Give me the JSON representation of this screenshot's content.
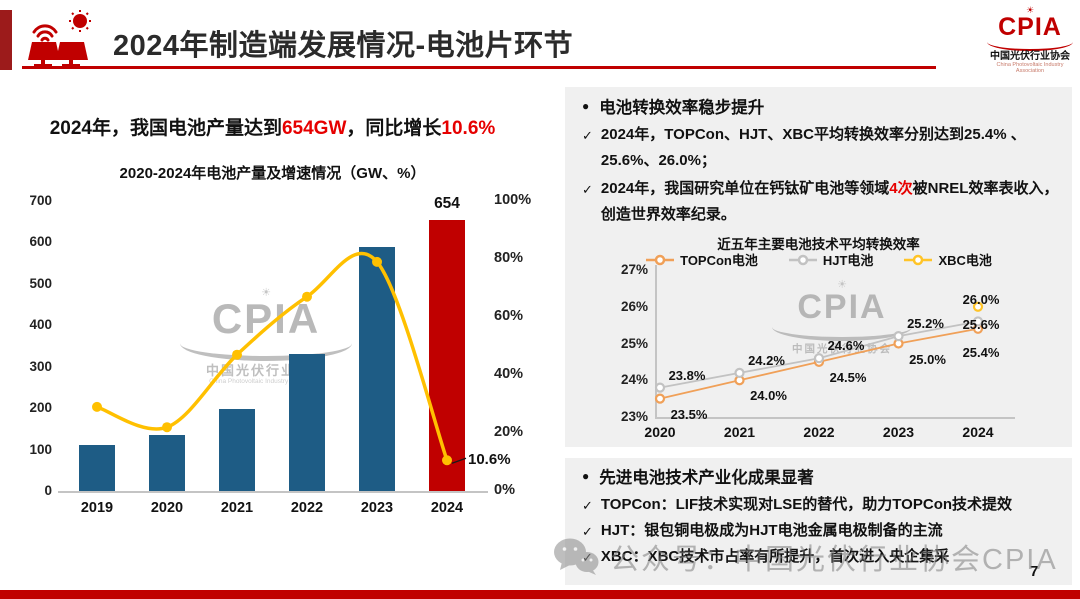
{
  "header": {
    "title": "2024年制造端发展情况-电池片环节",
    "logo": {
      "name": "CPIA",
      "cn": "中国光伏行业协会",
      "en": "China Photovoltaic Industry Association"
    }
  },
  "icons": {
    "bullet": "●",
    "check": "✓",
    "sun": "☀"
  },
  "colors": {
    "accent_red": "#C00000",
    "text_red": "#E60000",
    "bar_blue": "#1E5C85",
    "line_yellow": "#FFC000",
    "panel_gray": "#F0F0F0"
  },
  "left": {
    "headline_parts": [
      {
        "text": "2024年，我国电池产量达到",
        "red": false
      },
      {
        "text": "654GW",
        "red": true
      },
      {
        "text": "，同比增长",
        "red": false
      },
      {
        "text": "10.6%",
        "red": true
      }
    ]
  },
  "right": {
    "section1": {
      "heading": "电池转换效率稳步提升",
      "items": [
        [
          {
            "text": "2024年，TOPCon、HJT、XBC平均转换效率分别达到25.4% 、25.6%、26.0%；"
          }
        ],
        [
          {
            "text": "2024年，我国研究单位在钙钛矿电池等领域"
          },
          {
            "text": "4次",
            "red": true
          },
          {
            "text": "被NREL效率表收入，创造世界效率纪录。"
          }
        ]
      ]
    },
    "section2": {
      "heading": "先进电池技术产业化成果显著",
      "items": [
        [
          {
            "text": "TOPCon：LIF技术实现对LSE的替代，助力TOPCon技术提效"
          }
        ],
        [
          {
            "text": "HJT：银包铜电极成为HJT电池金属电极制备的主流"
          }
        ],
        [
          {
            "text": "XBC：XBC技术市占率有所提升，首次进入央企集采"
          }
        ]
      ]
    }
  },
  "watermark": {
    "cpia": "CPIA",
    "cn": "中国光伏行业协会",
    "en": "China Photovoltaic Industry Association",
    "wechat_text": "公众号：中国光伏行业协会CPIA"
  },
  "footer": {
    "page": "7"
  },
  "chart_data": [
    {
      "type": "bar+line",
      "title": "2020-2024年电池产量及增速情况（GW、%）",
      "categories": [
        "2019",
        "2020",
        "2021",
        "2022",
        "2023",
        "2024"
      ],
      "bar_series": {
        "name": "电池产量(GW)",
        "values": [
          110,
          135,
          198,
          331,
          590,
          654
        ],
        "colors": [
          "#1E5C85",
          "#1E5C85",
          "#1E5C85",
          "#1E5C85",
          "#1E5C85",
          "#C00000"
        ]
      },
      "line_series": {
        "name": "同比增速(%)",
        "color": "#FFC000",
        "values": [
          29,
          22,
          47,
          67,
          79,
          10.6
        ]
      },
      "left_axis": {
        "min": 0,
        "max": 700,
        "ticks": [
          "700",
          "600",
          "500",
          "400",
          "300",
          "200",
          "100",
          "0"
        ]
      },
      "right_axis": {
        "min": 0,
        "max": 100,
        "ticks": [
          "100%",
          "80%",
          "60%",
          "40%",
          "20%",
          "0%"
        ]
      },
      "annotations": {
        "bar_label": "654",
        "line_label": "10.6%"
      },
      "grid": false,
      "legend_position": "none"
    },
    {
      "type": "line",
      "title": "近五年主要电池技术平均转换效率",
      "categories": [
        "2020",
        "2021",
        "2022",
        "2023",
        "2024"
      ],
      "series": [
        {
          "name": "TOPCon电池",
          "color": "#F0A058",
          "values": [
            23.5,
            24.0,
            24.5,
            25.0,
            25.4
          ],
          "labels": [
            "23.5%",
            "24.0%",
            "24.5%",
            "25.0%",
            "25.4%"
          ]
        },
        {
          "name": "HJT电池",
          "color": "#C2C2C2",
          "values": [
            23.8,
            24.2,
            24.6,
            25.2,
            25.6
          ],
          "labels": [
            "23.8%",
            "24.2%",
            "24.6%",
            "25.2%",
            "25.6%"
          ]
        },
        {
          "name": "XBC电池",
          "color": "#FFC428",
          "values": [
            null,
            null,
            null,
            null,
            26.0
          ],
          "labels": [
            null,
            null,
            null,
            null,
            "26.0%"
          ]
        }
      ],
      "y_axis": {
        "min": 23,
        "max": 27,
        "ticks": [
          "27%",
          "26%",
          "25%",
          "24%",
          "23%"
        ]
      },
      "grid": false,
      "legend_position": "top"
    }
  ]
}
